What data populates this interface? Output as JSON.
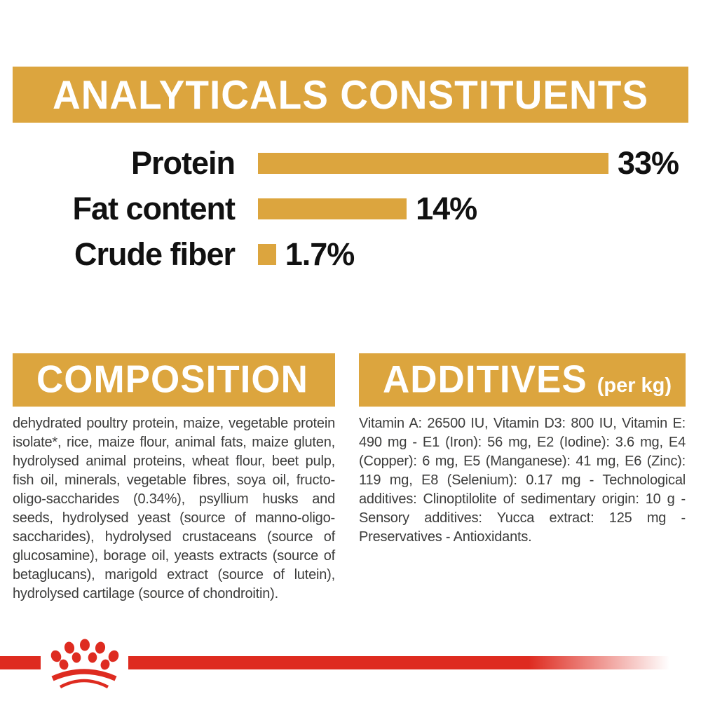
{
  "colors": {
    "gold": "#DCA53E",
    "red": "#DE2B20",
    "body_text": "#3C3C3B",
    "label_text": "#111111",
    "heading_text": "#FFFFFF",
    "background": "#FFFFFF"
  },
  "banner": {
    "title": "ANALYTICALS CONSTITUENTS"
  },
  "chart_data": {
    "type": "bar",
    "orientation": "horizontal",
    "title": "ANALYTICALS CONSTITUENTS",
    "categories": [
      "Protein",
      "Fat content",
      "Crude fiber"
    ],
    "values": [
      33,
      14,
      1.7
    ],
    "value_labels": [
      "33%",
      "14%",
      "1.7%"
    ],
    "unit": "%",
    "xlim": [
      0,
      33
    ],
    "bar_color": "#DCA53E",
    "grid": false,
    "legend": false
  },
  "sections": {
    "composition": {
      "heading": "COMPOSITION",
      "body": "dehydrated poultry protein, maize, vegetable protein isolate*, rice, maize flour, animal fats, maize gluten, hydrolysed animal proteins, wheat flour, beet pulp, fish oil, minerals, vegetable fibres, soya oil, fructo-oligo-saccharides (0.34%), psyllium husks and seeds, hydrolysed yeast (source of manno-oligo-saccharides), hydrolysed crustaceans (source of glucosamine), borage oil, yeasts extracts (source of betaglucans), marigold extract (source of lutein), hydrolysed cartilage (source of chondroitin)."
    },
    "additives": {
      "heading": "ADDITIVES",
      "heading_suffix": "(per kg)",
      "body": "Vitamin A: 26500 IU, Vitamin D3: 800 IU, Vitamin E: 490 mg - E1 (Iron): 56 mg, E2 (Iodine): 3.6 mg, E4 (Copper): 6 mg, E5 (Manganese): 41 mg, E6 (Zinc): 119 mg, E8 (Selenium): 0.17 mg - Technological additives: Clinoptilolite of sedimentary origin: 10 g - Sensory additives: Yucca extract: 125 mg - Preservatives - Antioxidants."
    }
  },
  "footer": {
    "brand_logo_icon": "royal-canin-crown-paw-icon"
  }
}
